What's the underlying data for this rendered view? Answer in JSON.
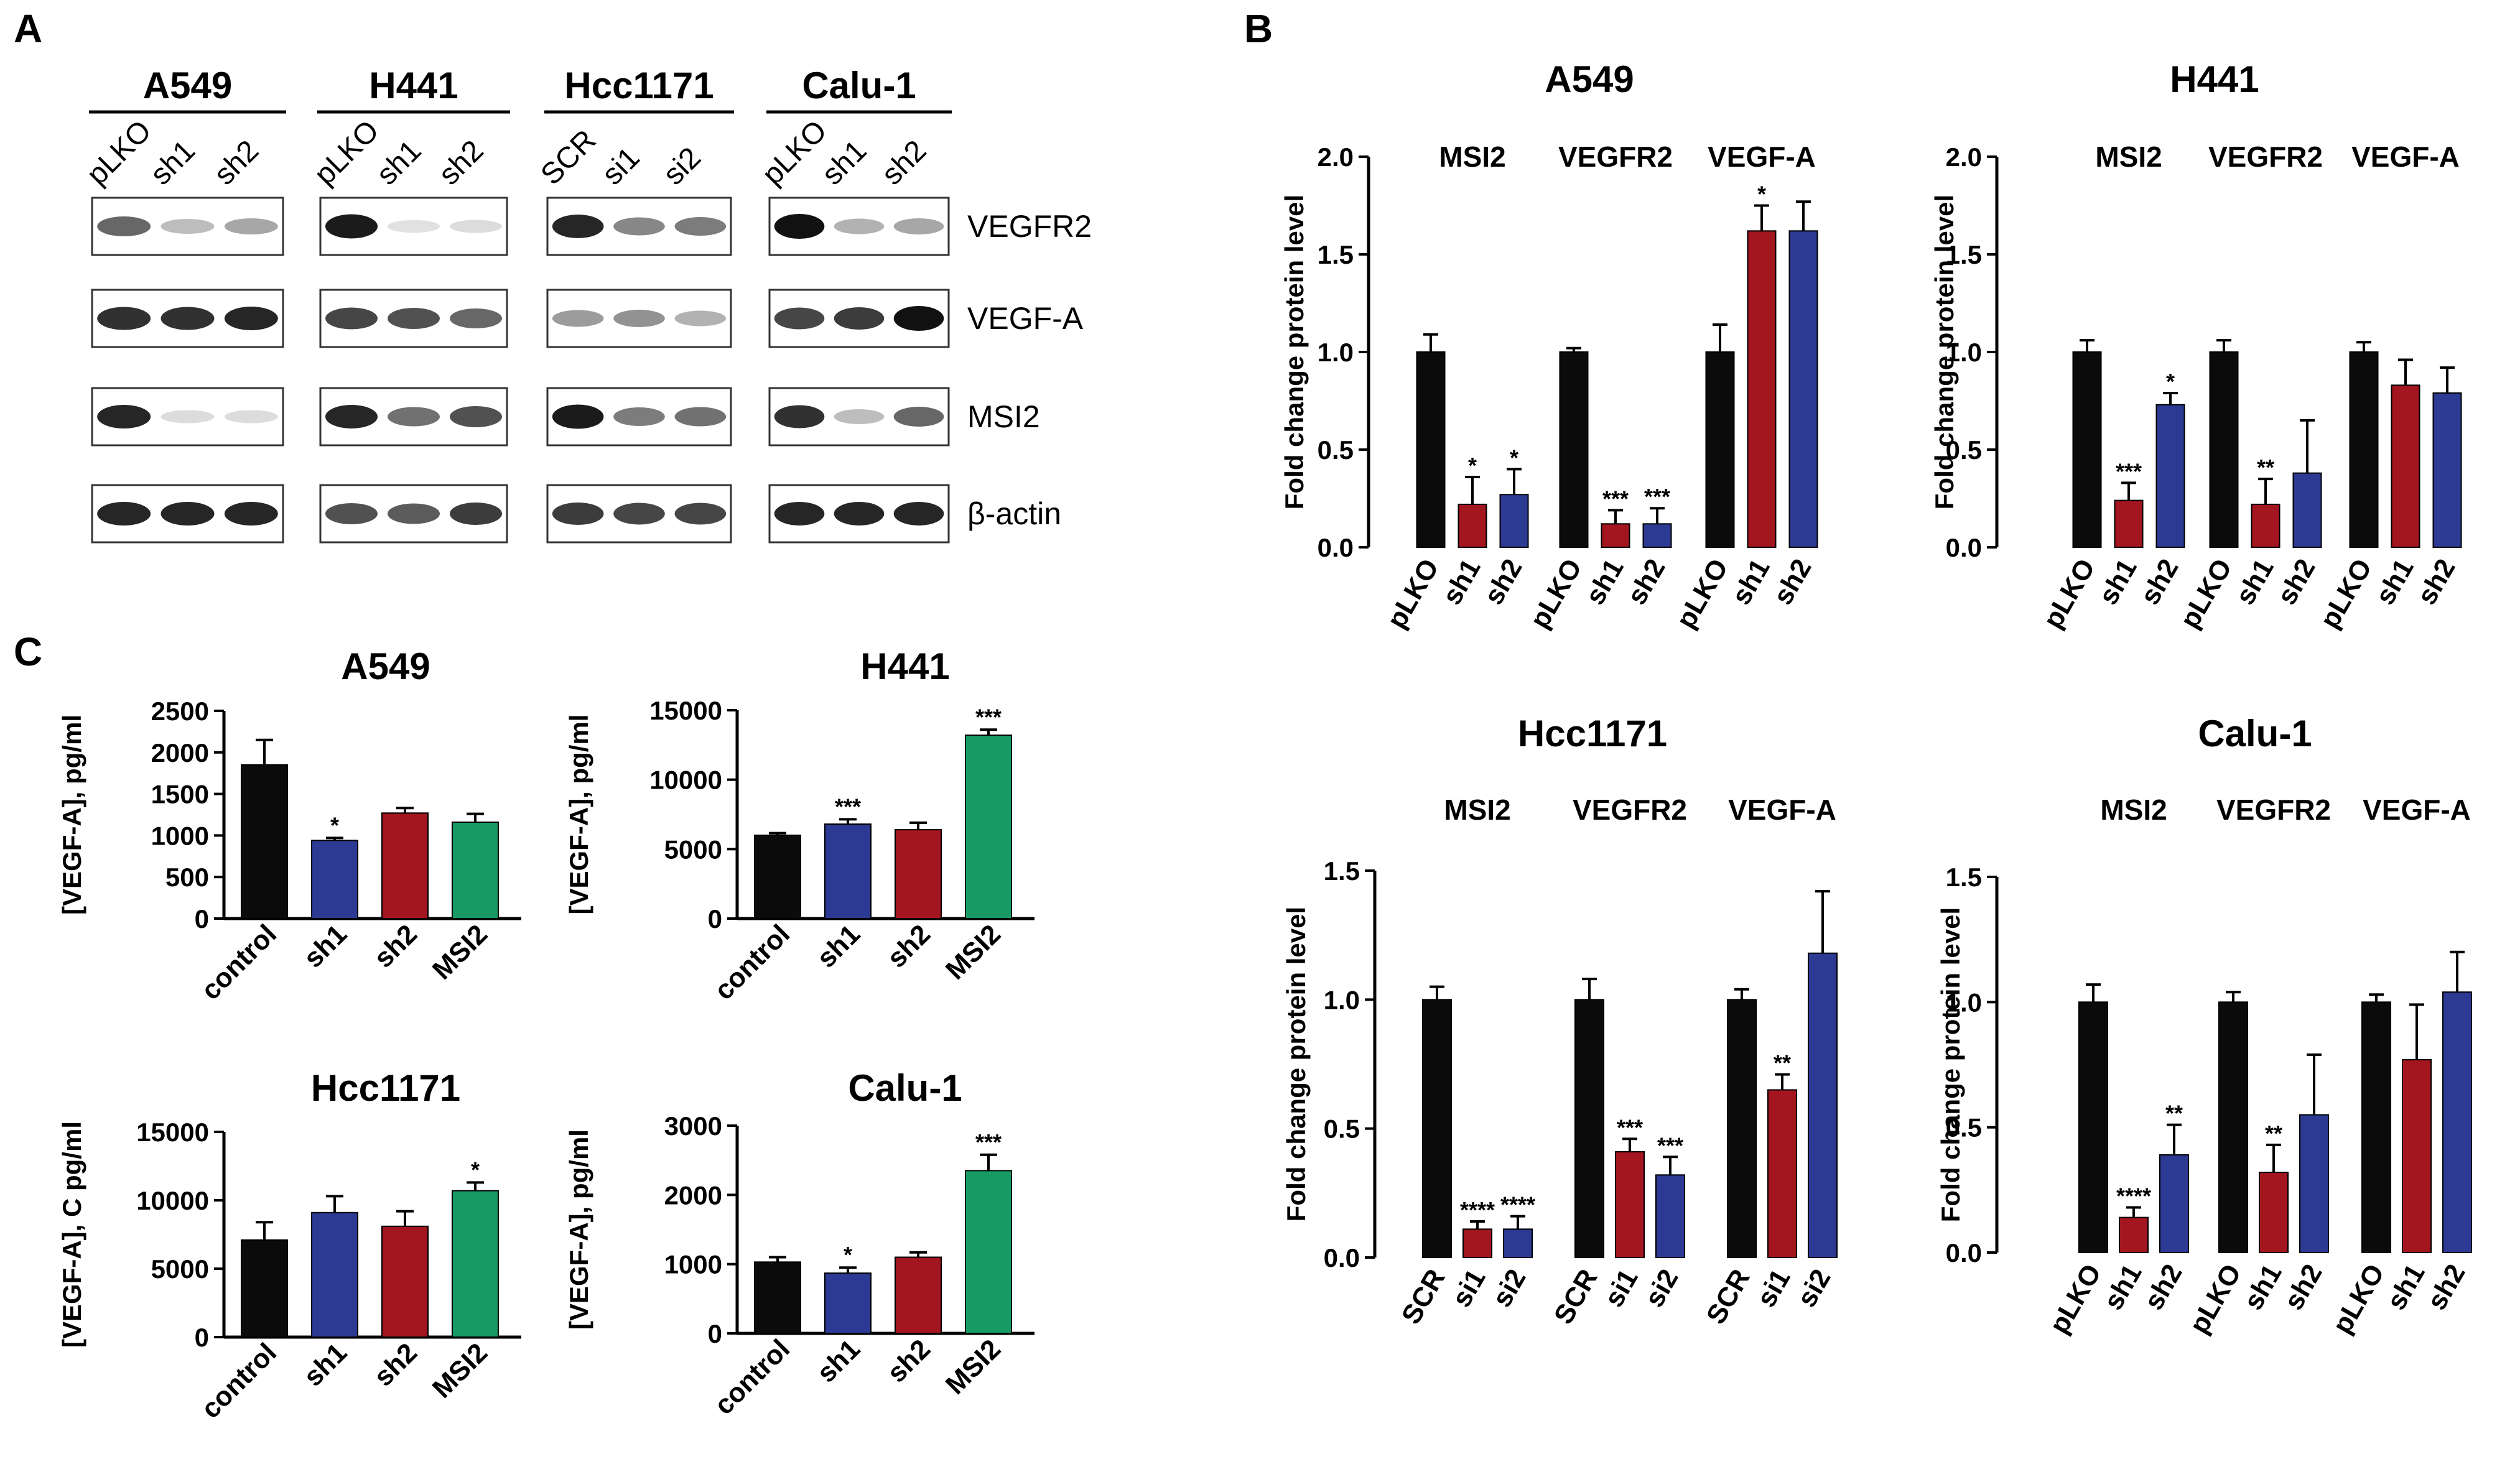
{
  "panels": {
    "a": "A",
    "b": "B",
    "c": "C"
  },
  "colors": {
    "black": "#0b0b0b",
    "red": "#a3151f",
    "blue": "#2c3a93",
    "green": "#179a63"
  },
  "blots": {
    "cell_lines": [
      {
        "title": "A549",
        "lanes": [
          "pLKO",
          "sh1",
          "sh2"
        ]
      },
      {
        "title": "H441",
        "lanes": [
          "pLKO",
          "sh1",
          "sh2"
        ]
      },
      {
        "title": "Hcc1171",
        "lanes": [
          "SCR",
          "si1",
          "si2"
        ]
      },
      {
        "title": "Calu-1",
        "lanes": [
          "pLKO",
          "sh1",
          "sh2"
        ]
      }
    ],
    "proteins": [
      "VEGFR2",
      "VEGF-A",
      "MSI2",
      "β-actin"
    ],
    "band_intensity": [
      [
        [
          0.6,
          0.2,
          0.3
        ],
        [
          0.85,
          0.85,
          0.9
        ],
        [
          0.9,
          0.05,
          0.05
        ],
        [
          0.9,
          0.9,
          0.9
        ]
      ],
      [
        [
          0.95,
          0.03,
          0.05
        ],
        [
          0.75,
          0.7,
          0.6
        ],
        [
          0.9,
          0.55,
          0.7
        ],
        [
          0.7,
          0.65,
          0.8
        ]
      ],
      [
        [
          0.9,
          0.45,
          0.5
        ],
        [
          0.35,
          0.4,
          0.25
        ],
        [
          0.95,
          0.5,
          0.55
        ],
        [
          0.8,
          0.75,
          0.75
        ]
      ],
      [
        [
          1.0,
          0.25,
          0.3
        ],
        [
          0.75,
          0.8,
          1.0
        ],
        [
          0.85,
          0.2,
          0.6
        ],
        [
          0.9,
          0.9,
          0.9
        ]
      ]
    ]
  },
  "chart_data": [
    {
      "type": "bar",
      "panel": "B",
      "title": "A549",
      "ylabel": "Fold change protein level",
      "ylim": [
        0,
        2.0
      ],
      "yticks": [
        "0.0",
        "0.5",
        "1.0",
        "1.5",
        "2.0"
      ],
      "groups": [
        {
          "label": "MSI2",
          "categories": [
            "pLKO",
            "sh1",
            "sh2"
          ],
          "values": [
            1.0,
            0.22,
            0.27
          ],
          "errors": [
            0.09,
            0.14,
            0.13
          ],
          "stars": [
            "",
            "*",
            "*"
          ]
        },
        {
          "label": "VEGFR2",
          "categories": [
            "pLKO",
            "sh1",
            "sh2"
          ],
          "values": [
            1.0,
            0.12,
            0.12
          ],
          "errors": [
            0.02,
            0.07,
            0.08
          ],
          "stars": [
            "",
            "***",
            "***"
          ]
        },
        {
          "label": "VEGF-A",
          "categories": [
            "pLKO",
            "sh1",
            "sh2"
          ],
          "values": [
            1.0,
            1.62,
            1.62
          ],
          "errors": [
            0.14,
            0.13,
            0.15
          ],
          "stars": [
            "",
            "*",
            ""
          ]
        }
      ]
    },
    {
      "type": "bar",
      "panel": "B",
      "title": "H441",
      "ylabel": "Fold change protein level",
      "ylim": [
        0,
        2.0
      ],
      "yticks": [
        "0.0",
        "0.5",
        "1.0",
        "1.5",
        "2.0"
      ],
      "groups": [
        {
          "label": "MSI2",
          "categories": [
            "pLKO",
            "sh1",
            "sh2"
          ],
          "values": [
            1.0,
            0.24,
            0.73
          ],
          "errors": [
            0.06,
            0.09,
            0.06
          ],
          "stars": [
            "",
            "***",
            "*"
          ]
        },
        {
          "label": "VEGFR2",
          "categories": [
            "pLKO",
            "sh1",
            "sh2"
          ],
          "values": [
            1.0,
            0.22,
            0.38
          ],
          "errors": [
            0.06,
            0.13,
            0.27
          ],
          "stars": [
            "",
            "**",
            ""
          ]
        },
        {
          "label": "VEGF-A",
          "categories": [
            "pLKO",
            "sh1",
            "sh2"
          ],
          "values": [
            1.0,
            0.83,
            0.79
          ],
          "errors": [
            0.05,
            0.13,
            0.13
          ],
          "stars": [
            "",
            "",
            ""
          ]
        }
      ]
    },
    {
      "type": "bar",
      "panel": "B",
      "title": "Hcc1171",
      "ylabel": "Fold change protein level",
      "ylim": [
        0,
        1.5
      ],
      "yticks": [
        "0.0",
        "0.5",
        "1.0",
        "1.5"
      ],
      "groups": [
        {
          "label": "MSI2",
          "categories": [
            "SCR",
            "si1",
            "si2"
          ],
          "values": [
            1.0,
            0.11,
            0.11
          ],
          "errors": [
            0.05,
            0.03,
            0.05
          ],
          "stars": [
            "",
            "****",
            "****"
          ]
        },
        {
          "label": "VEGFR2",
          "categories": [
            "SCR",
            "si1",
            "si2"
          ],
          "values": [
            1.0,
            0.41,
            0.32
          ],
          "errors": [
            0.08,
            0.05,
            0.07
          ],
          "stars": [
            "",
            "***",
            "***"
          ]
        },
        {
          "label": "VEGF-A",
          "categories": [
            "SCR",
            "si1",
            "si2"
          ],
          "values": [
            1.0,
            0.65,
            1.18
          ],
          "errors": [
            0.04,
            0.06,
            0.24
          ],
          "stars": [
            "",
            "**",
            ""
          ]
        }
      ]
    },
    {
      "type": "bar",
      "panel": "B",
      "title": "Calu-1",
      "ylabel": "Fold change protein level",
      "ylim": [
        0,
        1.5
      ],
      "yticks": [
        "0.0",
        "0.5",
        "1.0",
        "1.5"
      ],
      "groups": [
        {
          "label": "MSI2",
          "categories": [
            "pLKO",
            "sh1",
            "sh2"
          ],
          "values": [
            1.0,
            0.14,
            0.39
          ],
          "errors": [
            0.07,
            0.04,
            0.12
          ],
          "stars": [
            "",
            "****",
            "**"
          ]
        },
        {
          "label": "VEGFR2",
          "categories": [
            "pLKO",
            "sh1",
            "sh2"
          ],
          "values": [
            1.0,
            0.32,
            0.55
          ],
          "errors": [
            0.04,
            0.11,
            0.24
          ],
          "stars": [
            "",
            "**",
            ""
          ]
        },
        {
          "label": "VEGF-A",
          "categories": [
            "pLKO",
            "sh1",
            "sh2"
          ],
          "values": [
            1.0,
            0.77,
            1.04
          ],
          "errors": [
            0.03,
            0.22,
            0.16
          ],
          "stars": [
            "",
            "",
            ""
          ]
        }
      ]
    },
    {
      "type": "bar",
      "panel": "C",
      "title": "A549",
      "ylabel": "[VEGF-A],  pg/ml",
      "ylim": [
        0,
        2500
      ],
      "yticks": [
        "0",
        "500",
        "1000",
        "1500",
        "2000",
        "2500"
      ],
      "categories": [
        "control",
        "sh1",
        "sh2",
        "MSI2"
      ],
      "values": [
        1850,
        940,
        1270,
        1160
      ],
      "errors": [
        300,
        30,
        60,
        100
      ],
      "stars": [
        "",
        "*",
        "",
        ""
      ]
    },
    {
      "type": "bar",
      "panel": "C",
      "title": "H441",
      "ylabel": "[VEGF-A],  pg/ml",
      "ylim": [
        0,
        15000
      ],
      "yticks": [
        "0",
        "5000",
        "10000",
        "15000"
      ],
      "categories": [
        "control",
        "sh1",
        "sh2",
        "MSI2"
      ],
      "values": [
        6000,
        6800,
        6400,
        13200
      ],
      "errors": [
        150,
        350,
        500,
        400
      ],
      "stars": [
        "",
        "***",
        "",
        "***"
      ]
    },
    {
      "type": "bar",
      "panel": "C",
      "title": "Hcc1171",
      "ylabel": "[VEGF-A], C pg/ml",
      "ylim": [
        0,
        15000
      ],
      "yticks": [
        "0",
        "5000",
        "10000",
        "15000"
      ],
      "categories": [
        "control",
        "sh1",
        "sh2",
        "MSI2"
      ],
      "values": [
        7100,
        9100,
        8100,
        10700
      ],
      "errors": [
        1300,
        1200,
        1100,
        600
      ],
      "stars": [
        "",
        "",
        "",
        "*"
      ]
    },
    {
      "type": "bar",
      "panel": "C",
      "title": "Calu-1",
      "ylabel": "[VEGF-A],  pg/ml",
      "ylim": [
        0,
        3000
      ],
      "yticks": [
        "0",
        "1000",
        "2000",
        "3000"
      ],
      "categories": [
        "control",
        "sh1",
        "sh2",
        "MSI2"
      ],
      "values": [
        1030,
        870,
        1100,
        2350
      ],
      "errors": [
        70,
        80,
        70,
        230
      ],
      "stars": [
        "",
        "*",
        "",
        "***"
      ]
    }
  ]
}
